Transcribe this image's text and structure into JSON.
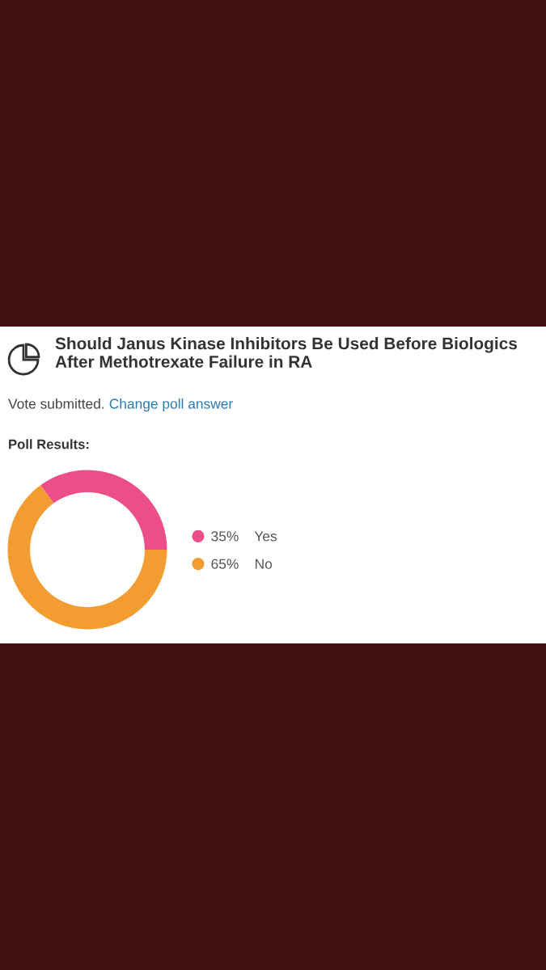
{
  "chart_data": {
    "type": "donut",
    "title": "Should Janus Kinase Inhibitors Be Used Before Biologics After Methotrexate Failure in RA",
    "annotations": [
      "Vote submitted.",
      "Change poll answer",
      "Poll Results:"
    ],
    "categories": [
      "Yes",
      "No"
    ],
    "values": [
      35,
      65
    ],
    "colors": [
      "#ec4f88",
      "#f39c31"
    ],
    "value_labels": [
      "35%",
      "65%"
    ],
    "legend": "right"
  }
}
